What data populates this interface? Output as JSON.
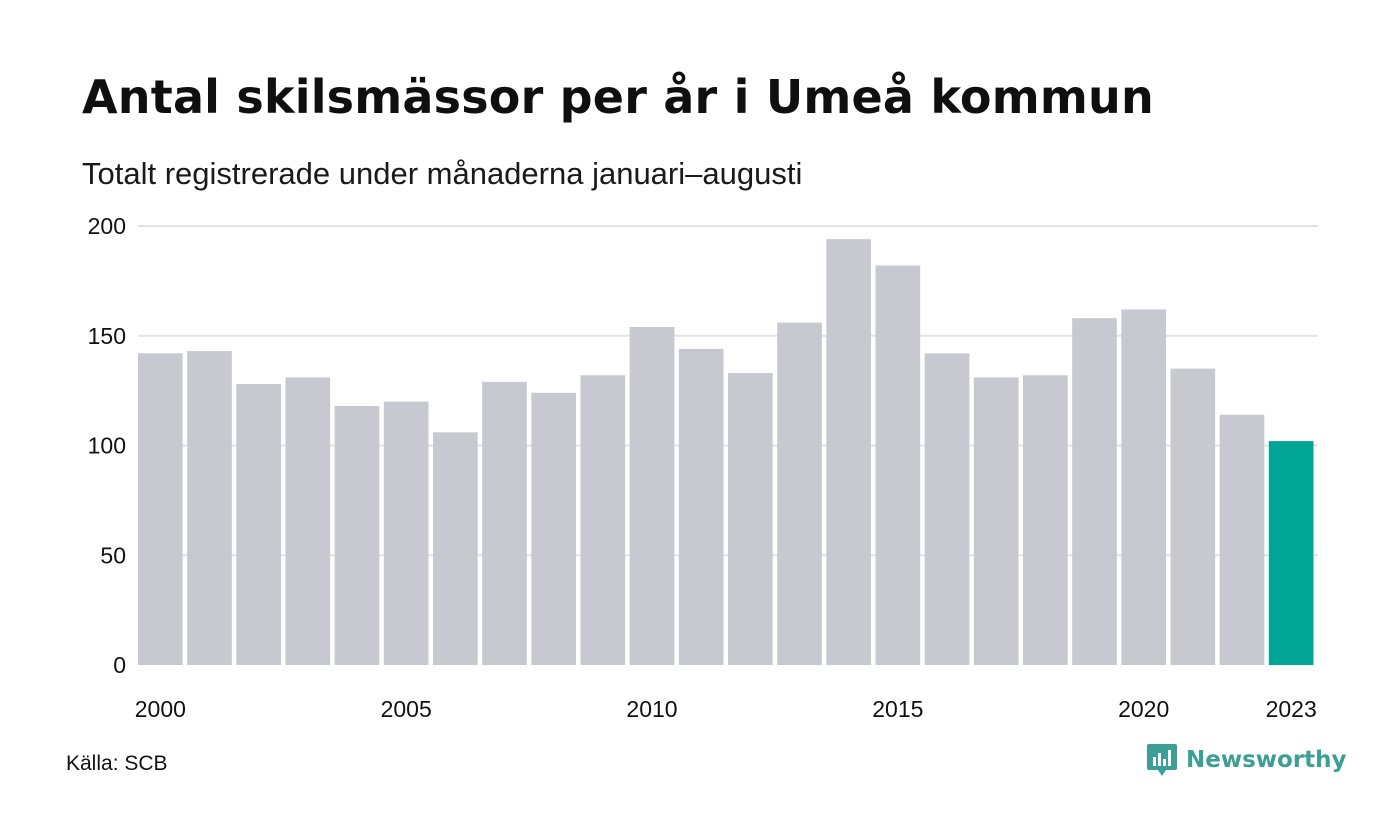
{
  "header": {
    "title": "Antal skilsmässor per år i Umeå kommun",
    "subtitle": "Totalt registrerade under månaderna januari–augusti"
  },
  "footer": {
    "source": "Källa: SCB",
    "brand": "Newsworthy",
    "brand_icon": "newsworthy-logo-icon"
  },
  "colors": {
    "bar": "#c8c8d0",
    "highlight": "#00a596",
    "grid": "#e2e2e6",
    "brand": "#3c9f95"
  },
  "chart_data": {
    "type": "bar",
    "title": "Antal skilsmässor per år i Umeå kommun",
    "subtitle": "Totalt registrerade under månaderna januari–augusti",
    "categories": [
      "2000",
      "2001",
      "2002",
      "2003",
      "2004",
      "2005",
      "2006",
      "2007",
      "2008",
      "2009",
      "2010",
      "2011",
      "2012",
      "2013",
      "2014",
      "2015",
      "2016",
      "2017",
      "2018",
      "2019",
      "2020",
      "2021",
      "2022",
      "2023"
    ],
    "values": [
      142,
      143,
      128,
      131,
      118,
      120,
      106,
      129,
      124,
      132,
      154,
      144,
      133,
      156,
      194,
      182,
      142,
      131,
      132,
      158,
      162,
      135,
      114,
      102
    ],
    "highlight_category": "2023",
    "x_tick_labels": [
      "2000",
      "2005",
      "2010",
      "2015",
      "2020",
      "2023"
    ],
    "y_ticks": [
      0,
      50,
      100,
      150,
      200
    ],
    "ylim": [
      0,
      200
    ],
    "xlabel": "",
    "ylabel": "",
    "grid": true,
    "legend": "none"
  }
}
